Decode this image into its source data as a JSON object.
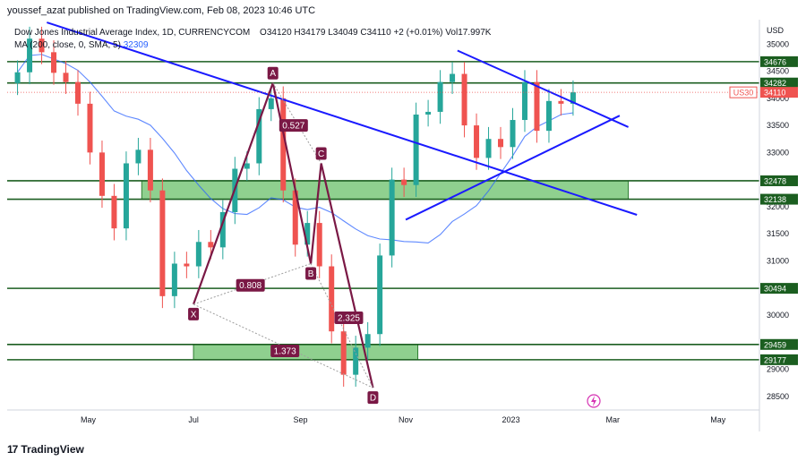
{
  "publisher_line": "youssef_azat published on TradingView.com, Feb 08, 2023 10:46 UTC",
  "footer_brand": "TradingView",
  "chart_data": {
    "type": "candlestick",
    "title": "Dow Jones Industrial Average Index, 1D, CURRENCYCOM",
    "ohlc_label": {
      "open": "O34120",
      "high": "H34179",
      "low": "L34049",
      "close": "C34110",
      "change": "+2 (+0.01%)",
      "volume": "Vol17.997K"
    },
    "ma_label": {
      "text": "MA (200, close, 0, SMA, 5)",
      "value": "32309"
    },
    "currency": "USD",
    "symbol_tag": "US30",
    "last_price": "34110",
    "y_ticks": [
      "35000",
      "34500",
      "34000",
      "33500",
      "33000",
      "32500",
      "32000",
      "31500",
      "31000",
      "30500",
      "30000",
      "29500",
      "29000",
      "28500"
    ],
    "x_ticks": [
      "May",
      "Jul",
      "Sep",
      "Nov",
      "2023",
      "Mar",
      "May"
    ],
    "ylim": [
      28250,
      35450
    ],
    "horizontal_levels": [
      "34676",
      "34282",
      "32478",
      "32138",
      "30494",
      "29459",
      "29177"
    ],
    "zones": [
      {
        "from_date": "2022-06-01",
        "to_date": "2023-03-10",
        "low": 32138,
        "high": 32478,
        "color": "#8fd08f"
      },
      {
        "from_date": "2022-07-01",
        "to_date": "2022-11-08",
        "low": 29177,
        "high": 29459,
        "color": "#8fd08f"
      }
    ],
    "harmonic_points": [
      {
        "label": "X",
        "date": "2022-07-01",
        "price": 30200
      },
      {
        "label": "A",
        "date": "2022-08-16",
        "price": 34282
      },
      {
        "label": "B",
        "date": "2022-09-07",
        "price": 30950
      },
      {
        "label": "C",
        "date": "2022-09-13",
        "price": 32800
      },
      {
        "label": "D",
        "date": "2022-10-13",
        "price": 28660
      }
    ],
    "ratios": [
      {
        "label": "0.527",
        "date": "2022-08-28",
        "price": 33500
      },
      {
        "label": "0.808",
        "date": "2022-08-03",
        "price": 30550
      },
      {
        "label": "2.325",
        "date": "2022-09-29",
        "price": 29950
      },
      {
        "label": "1.373",
        "date": "2022-08-23",
        "price": 29340
      }
    ],
    "trendlines": [
      {
        "from_date": "2022-04-07",
        "from_price": 35400,
        "to_date": "2023-03-15",
        "to_price": 31850
      },
      {
        "from_date": "2022-12-01",
        "from_price": 34880,
        "to_date": "2023-03-10",
        "to_price": 33470
      },
      {
        "from_date": "2022-11-01",
        "from_price": 31760,
        "to_date": "2023-03-05",
        "to_price": 33680
      }
    ],
    "candles": [
      {
        "date": "2022-03-21",
        "close": 34480
      },
      {
        "date": "2022-03-28",
        "close": 35100
      },
      {
        "date": "2022-04-04",
        "close": 34850
      },
      {
        "date": "2022-04-11",
        "close": 34470
      },
      {
        "date": "2022-04-18",
        "close": 34300
      },
      {
        "date": "2022-04-25",
        "close": 33900
      },
      {
        "date": "2022-05-02",
        "close": 33000
      },
      {
        "date": "2022-05-09",
        "close": 32200
      },
      {
        "date": "2022-05-16",
        "close": 31600
      },
      {
        "date": "2022-05-23",
        "close": 32800
      },
      {
        "date": "2022-05-30",
        "close": 33050
      },
      {
        "date": "2022-06-06",
        "close": 32300
      },
      {
        "date": "2022-06-13",
        "close": 30350
      },
      {
        "date": "2022-06-20",
        "close": 30950
      },
      {
        "date": "2022-06-27",
        "close": 30900
      },
      {
        "date": "2022-07-04",
        "close": 31350
      },
      {
        "date": "2022-07-11",
        "close": 31250
      },
      {
        "date": "2022-07-18",
        "close": 31900
      },
      {
        "date": "2022-07-25",
        "close": 32700
      },
      {
        "date": "2022-08-01",
        "close": 32800
      },
      {
        "date": "2022-08-08",
        "close": 33800
      },
      {
        "date": "2022-08-15",
        "close": 34000
      },
      {
        "date": "2022-08-22",
        "close": 32300
      },
      {
        "date": "2022-08-29",
        "close": 31300
      },
      {
        "date": "2022-09-05",
        "close": 31700
      },
      {
        "date": "2022-09-12",
        "close": 30900
      },
      {
        "date": "2022-09-19",
        "close": 29700
      },
      {
        "date": "2022-09-26",
        "close": 28900
      },
      {
        "date": "2022-10-03",
        "close": 29400
      },
      {
        "date": "2022-10-10",
        "close": 29650
      },
      {
        "date": "2022-10-17",
        "close": 31100
      },
      {
        "date": "2022-10-24",
        "close": 32500
      },
      {
        "date": "2022-10-31",
        "close": 32400
      },
      {
        "date": "2022-11-07",
        "close": 33700
      },
      {
        "date": "2022-11-14",
        "close": 33750
      },
      {
        "date": "2022-11-21",
        "close": 34300
      },
      {
        "date": "2022-11-28",
        "close": 34450
      },
      {
        "date": "2022-12-05",
        "close": 33500
      },
      {
        "date": "2022-12-12",
        "close": 32900
      },
      {
        "date": "2022-12-19",
        "close": 33250
      },
      {
        "date": "2022-12-26",
        "close": 33100
      },
      {
        "date": "2023-01-02",
        "close": 33600
      },
      {
        "date": "2023-01-09",
        "close": 34300
      },
      {
        "date": "2023-01-16",
        "close": 33400
      },
      {
        "date": "2023-01-23",
        "close": 33950
      },
      {
        "date": "2023-01-30",
        "close": 33900
      },
      {
        "date": "2023-02-06",
        "close": 34110
      }
    ]
  }
}
